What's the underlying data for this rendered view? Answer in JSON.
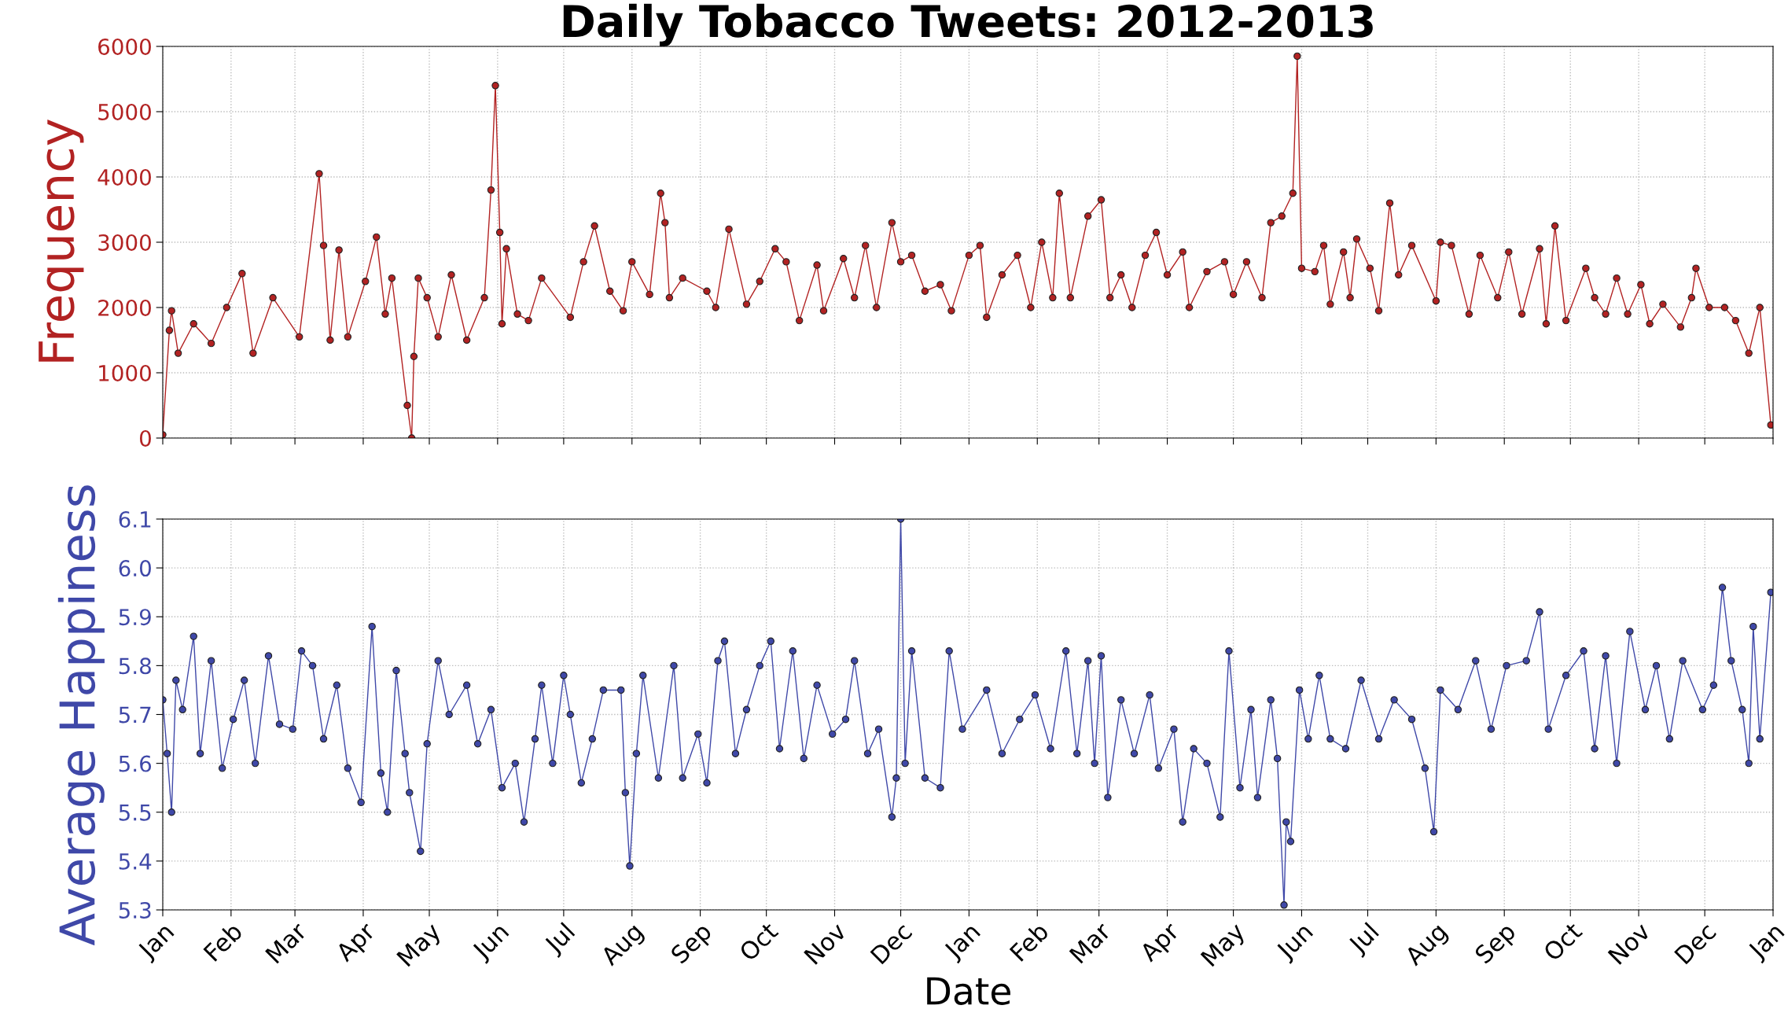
{
  "chart_data": [
    {
      "type": "line",
      "title": "Daily Tobacco Tweets: 2012-2013",
      "ylabel": "Frequency",
      "marker": "circle",
      "line_style": "solid",
      "grid": true,
      "legend": false,
      "tick_labels": "y",
      "xlim": [
        "2012-01-01",
        "2014-01-01"
      ],
      "xticks": [
        {
          "value": "2012-01-01",
          "label": null
        },
        {
          "value": "2012-02-01",
          "label": null
        },
        {
          "value": "2012-03-01",
          "label": null
        },
        {
          "value": "2012-04-01",
          "label": null
        },
        {
          "value": "2012-05-01",
          "label": null
        },
        {
          "value": "2012-06-01",
          "label": null
        },
        {
          "value": "2012-07-01",
          "label": null
        },
        {
          "value": "2012-08-01",
          "label": null
        },
        {
          "value": "2012-09-01",
          "label": null
        },
        {
          "value": "2012-10-01",
          "label": null
        },
        {
          "value": "2012-11-01",
          "label": null
        },
        {
          "value": "2012-12-01",
          "label": null
        },
        {
          "value": "2013-01-01",
          "label": null
        },
        {
          "value": "2013-02-01",
          "label": null
        },
        {
          "value": "2013-03-01",
          "label": null
        },
        {
          "value": "2013-04-01",
          "label": null
        },
        {
          "value": "2013-05-01",
          "label": null
        },
        {
          "value": "2013-06-01",
          "label": null
        },
        {
          "value": "2013-07-01",
          "label": null
        },
        {
          "value": "2013-08-01",
          "label": null
        },
        {
          "value": "2013-09-01",
          "label": null
        },
        {
          "value": "2013-10-01",
          "label": null
        },
        {
          "value": "2013-11-01",
          "label": null
        },
        {
          "value": "2013-12-01",
          "label": null
        },
        {
          "value": "2014-01-01",
          "label": null
        }
      ],
      "ylim": [
        0,
        6000
      ],
      "yticks": [
        0,
        1000,
        2000,
        3000,
        4000,
        5000,
        6000
      ],
      "series": [
        {
          "color": "#b22222",
          "x": [
            "2012-01-01",
            "2012-01-04",
            "2012-01-05",
            "2012-01-08",
            "2012-01-15",
            "2012-01-23",
            "2012-01-30",
            "2012-02-06",
            "2012-02-11",
            "2012-02-20",
            "2012-03-03",
            "2012-03-12",
            "2012-03-14",
            "2012-03-17",
            "2012-03-21",
            "2012-03-25",
            "2012-04-02",
            "2012-04-07",
            "2012-04-11",
            "2012-04-14",
            "2012-04-21",
            "2012-04-23",
            "2012-04-24",
            "2012-04-26",
            "2012-04-30",
            "2012-05-05",
            "2012-05-11",
            "2012-05-18",
            "2012-05-26",
            "2012-05-29",
            "2012-05-31",
            "2012-06-02",
            "2012-06-03",
            "2012-06-05",
            "2012-06-10",
            "2012-06-15",
            "2012-06-21",
            "2012-07-04",
            "2012-07-10",
            "2012-07-15",
            "2012-07-22",
            "2012-07-28",
            "2012-08-01",
            "2012-08-09",
            "2012-08-14",
            "2012-08-16",
            "2012-08-18",
            "2012-08-24",
            "2012-09-04",
            "2012-09-08",
            "2012-09-14",
            "2012-09-22",
            "2012-09-28",
            "2012-10-05",
            "2012-10-10",
            "2012-10-16",
            "2012-10-24",
            "2012-10-27",
            "2012-11-05",
            "2012-11-10",
            "2012-11-15",
            "2012-11-20",
            "2012-11-27",
            "2012-12-01",
            "2012-12-06",
            "2012-12-12",
            "2012-12-19",
            "2012-12-24",
            "2013-01-01",
            "2013-01-06",
            "2013-01-09",
            "2013-01-16",
            "2013-01-23",
            "2013-01-29",
            "2013-02-03",
            "2013-02-08",
            "2013-02-11",
            "2013-02-16",
            "2013-02-24",
            "2013-03-02",
            "2013-03-06",
            "2013-03-11",
            "2013-03-16",
            "2013-03-22",
            "2013-03-27",
            "2013-04-01",
            "2013-04-08",
            "2013-04-11",
            "2013-04-19",
            "2013-04-27",
            "2013-05-01",
            "2013-05-07",
            "2013-05-14",
            "2013-05-18",
            "2013-05-23",
            "2013-05-28",
            "2013-05-30",
            "2013-06-01",
            "2013-06-07",
            "2013-06-11",
            "2013-06-14",
            "2013-06-20",
            "2013-06-23",
            "2013-06-26",
            "2013-07-02",
            "2013-07-06",
            "2013-07-11",
            "2013-07-15",
            "2013-07-21",
            "2013-08-01",
            "2013-08-03",
            "2013-08-08",
            "2013-08-16",
            "2013-08-21",
            "2013-08-29",
            "2013-09-03",
            "2013-09-09",
            "2013-09-17",
            "2013-09-20",
            "2013-09-24",
            "2013-09-29",
            "2013-10-08",
            "2013-10-12",
            "2013-10-17",
            "2013-10-22",
            "2013-10-27",
            "2013-11-02",
            "2013-11-06",
            "2013-11-12",
            "2013-11-20",
            "2013-11-25",
            "2013-11-27",
            "2013-12-03",
            "2013-12-10",
            "2013-12-15",
            "2013-12-21",
            "2013-12-26",
            "2013-12-31"
          ],
          "values": [
            50,
            1650,
            1950,
            1300,
            1750,
            1450,
            2000,
            2520,
            1300,
            2150,
            1550,
            4050,
            2950,
            1500,
            2880,
            1550,
            2400,
            3080,
            1900,
            2450,
            500,
            0,
            1250,
            2450,
            2150,
            1550,
            2500,
            1500,
            2150,
            3800,
            5400,
            3150,
            1750,
            2900,
            1900,
            1800,
            2450,
            1850,
            2700,
            3250,
            2250,
            1950,
            2700,
            2200,
            3750,
            3300,
            2150,
            2450,
            2250,
            2000,
            3200,
            2050,
            2400,
            2900,
            2700,
            1800,
            2650,
            1950,
            2750,
            2150,
            2950,
            2000,
            3300,
            2700,
            2800,
            2250,
            2350,
            1950,
            2800,
            2950,
            1850,
            2500,
            2800,
            2000,
            3000,
            2150,
            3750,
            2150,
            3400,
            3650,
            2150,
            2500,
            2000,
            2800,
            3150,
            2500,
            2850,
            2000,
            2550,
            2700,
            2200,
            2700,
            2150,
            3300,
            3400,
            3750,
            5850,
            2600,
            2550,
            2950,
            2050,
            2850,
            2150,
            3050,
            2600,
            1950,
            3600,
            2500,
            2950,
            2100,
            3000,
            2950,
            1900,
            2800,
            2150,
            2850,
            1900,
            2900,
            1750,
            3250,
            1800,
            2600,
            2150,
            1900,
            2450,
            1900,
            2350,
            1750,
            2050,
            1700,
            2150,
            2600,
            2000,
            2000,
            1800,
            1300,
            2000,
            200
          ]
        }
      ]
    },
    {
      "type": "line",
      "xlabel": "Date",
      "ylabel": "Average Happiness",
      "marker": "circle",
      "line_style": "solid",
      "grid": true,
      "legend": false,
      "xlim": [
        "2012-01-01",
        "2014-01-01"
      ],
      "xticks": [
        {
          "value": "2012-01-01",
          "label": "Jan"
        },
        {
          "value": "2012-02-01",
          "label": "Feb"
        },
        {
          "value": "2012-03-01",
          "label": "Mar"
        },
        {
          "value": "2012-04-01",
          "label": "Apr"
        },
        {
          "value": "2012-05-01",
          "label": "May"
        },
        {
          "value": "2012-06-01",
          "label": "Jun"
        },
        {
          "value": "2012-07-01",
          "label": "Jul"
        },
        {
          "value": "2012-08-01",
          "label": "Aug"
        },
        {
          "value": "2012-09-01",
          "label": "Sep"
        },
        {
          "value": "2012-10-01",
          "label": "Oct"
        },
        {
          "value": "2012-11-01",
          "label": "Nov"
        },
        {
          "value": "2012-12-01",
          "label": "Dec"
        },
        {
          "value": "2013-01-01",
          "label": "Jan"
        },
        {
          "value": "2013-02-01",
          "label": "Feb"
        },
        {
          "value": "2013-03-01",
          "label": "Mar"
        },
        {
          "value": "2013-04-01",
          "label": "Apr"
        },
        {
          "value": "2013-05-01",
          "label": "May"
        },
        {
          "value": "2013-06-01",
          "label": "Jun"
        },
        {
          "value": "2013-07-01",
          "label": "Jul"
        },
        {
          "value": "2013-08-01",
          "label": "Aug"
        },
        {
          "value": "2013-09-01",
          "label": "Sep"
        },
        {
          "value": "2013-10-01",
          "label": "Oct"
        },
        {
          "value": "2013-11-01",
          "label": "Nov"
        },
        {
          "value": "2013-12-01",
          "label": "Dec"
        },
        {
          "value": "2014-01-01",
          "label": "Jan"
        }
      ],
      "ylim": [
        5.3,
        6.1
      ],
      "yticks": [
        5.3,
        5.4,
        5.5,
        5.6,
        5.7,
        5.8,
        5.9,
        {
          "value": 6.0,
          "label": "6.0"
        },
        6.1
      ],
      "series": [
        {
          "color": "#3f48a8",
          "x": [
            "2012-01-01",
            "2012-01-03",
            "2012-01-05",
            "2012-01-07",
            "2012-01-10",
            "2012-01-15",
            "2012-01-18",
            "2012-01-23",
            "2012-01-28",
            "2012-02-02",
            "2012-02-07",
            "2012-02-12",
            "2012-02-18",
            "2012-02-23",
            "2012-02-29",
            "2012-03-04",
            "2012-03-09",
            "2012-03-14",
            "2012-03-20",
            "2012-03-25",
            "2012-03-31",
            "2012-04-05",
            "2012-04-09",
            "2012-04-12",
            "2012-04-16",
            "2012-04-20",
            "2012-04-22",
            "2012-04-27",
            "2012-04-30",
            "2012-05-05",
            "2012-05-10",
            "2012-05-18",
            "2012-05-23",
            "2012-05-29",
            "2012-06-03",
            "2012-06-09",
            "2012-06-13",
            "2012-06-18",
            "2012-06-21",
            "2012-06-26",
            "2012-07-01",
            "2012-07-04",
            "2012-07-09",
            "2012-07-14",
            "2012-07-19",
            "2012-07-27",
            "2012-07-29",
            "2012-07-31",
            "2012-08-03",
            "2012-08-06",
            "2012-08-13",
            "2012-08-20",
            "2012-08-24",
            "2012-08-31",
            "2012-09-04",
            "2012-09-09",
            "2012-09-12",
            "2012-09-17",
            "2012-09-22",
            "2012-09-28",
            "2012-10-03",
            "2012-10-07",
            "2012-10-13",
            "2012-10-18",
            "2012-10-24",
            "2012-10-31",
            "2012-11-06",
            "2012-11-10",
            "2012-11-16",
            "2012-11-21",
            "2012-11-27",
            "2012-11-29",
            "2012-12-01",
            "2012-12-03",
            "2012-12-06",
            "2012-12-12",
            "2012-12-19",
            "2012-12-23",
            "2012-12-29",
            "2013-01-09",
            "2013-01-16",
            "2013-01-24",
            "2013-01-31",
            "2013-02-07",
            "2013-02-14",
            "2013-02-19",
            "2013-02-24",
            "2013-02-27",
            "2013-03-02",
            "2013-03-05",
            "2013-03-11",
            "2013-03-17",
            "2013-03-24",
            "2013-03-28",
            "2013-04-04",
            "2013-04-08",
            "2013-04-13",
            "2013-04-19",
            "2013-04-25",
            "2013-04-29",
            "2013-05-04",
            "2013-05-09",
            "2013-05-12",
            "2013-05-18",
            "2013-05-21",
            "2013-05-24",
            "2013-05-25",
            "2013-05-27",
            "2013-05-31",
            "2013-06-04",
            "2013-06-09",
            "2013-06-14",
            "2013-06-21",
            "2013-06-28",
            "2013-07-06",
            "2013-07-13",
            "2013-07-21",
            "2013-07-27",
            "2013-07-31",
            "2013-08-03",
            "2013-08-11",
            "2013-08-19",
            "2013-08-26",
            "2013-09-02",
            "2013-09-11",
            "2013-09-17",
            "2013-09-21",
            "2013-09-29",
            "2013-10-07",
            "2013-10-12",
            "2013-10-17",
            "2013-10-22",
            "2013-10-28",
            "2013-11-04",
            "2013-11-09",
            "2013-11-15",
            "2013-11-21",
            "2013-11-30",
            "2013-12-05",
            "2013-12-09",
            "2013-12-13",
            "2013-12-18",
            "2013-12-21",
            "2013-12-23",
            "2013-12-26",
            "2013-12-31"
          ],
          "values": [
            5.73,
            5.62,
            5.5,
            5.77,
            5.71,
            5.86,
            5.62,
            5.81,
            5.59,
            5.69,
            5.77,
            5.6,
            5.82,
            5.68,
            5.67,
            5.83,
            5.8,
            5.65,
            5.76,
            5.59,
            5.52,
            5.88,
            5.58,
            5.5,
            5.79,
            5.62,
            5.54,
            5.42,
            5.64,
            5.81,
            5.7,
            5.76,
            5.64,
            5.71,
            5.55,
            5.6,
            5.48,
            5.65,
            5.76,
            5.6,
            5.78,
            5.7,
            5.56,
            5.65,
            5.75,
            5.75,
            5.54,
            5.39,
            5.62,
            5.78,
            5.57,
            5.8,
            5.57,
            5.66,
            5.56,
            5.81,
            5.85,
            5.62,
            5.71,
            5.8,
            5.85,
            5.63,
            5.83,
            5.61,
            5.76,
            5.66,
            5.69,
            5.81,
            5.62,
            5.67,
            5.49,
            5.57,
            6.1,
            5.6,
            5.83,
            5.57,
            5.55,
            5.83,
            5.67,
            5.75,
            5.62,
            5.69,
            5.74,
            5.63,
            5.83,
            5.62,
            5.81,
            5.6,
            5.82,
            5.53,
            5.73,
            5.62,
            5.74,
            5.59,
            5.67,
            5.48,
            5.63,
            5.6,
            5.49,
            5.83,
            5.55,
            5.71,
            5.53,
            5.73,
            5.61,
            5.31,
            5.48,
            5.44,
            5.75,
            5.65,
            5.78,
            5.65,
            5.63,
            5.77,
            5.65,
            5.73,
            5.69,
            5.59,
            5.46,
            5.75,
            5.71,
            5.81,
            5.67,
            5.8,
            5.81,
            5.91,
            5.67,
            5.78,
            5.83,
            5.63,
            5.82,
            5.6,
            5.87,
            5.71,
            5.8,
            5.65,
            5.81,
            5.71,
            5.76,
            5.96,
            5.81,
            5.71,
            5.6,
            5.88,
            5.65,
            5.95
          ]
        }
      ]
    }
  ]
}
